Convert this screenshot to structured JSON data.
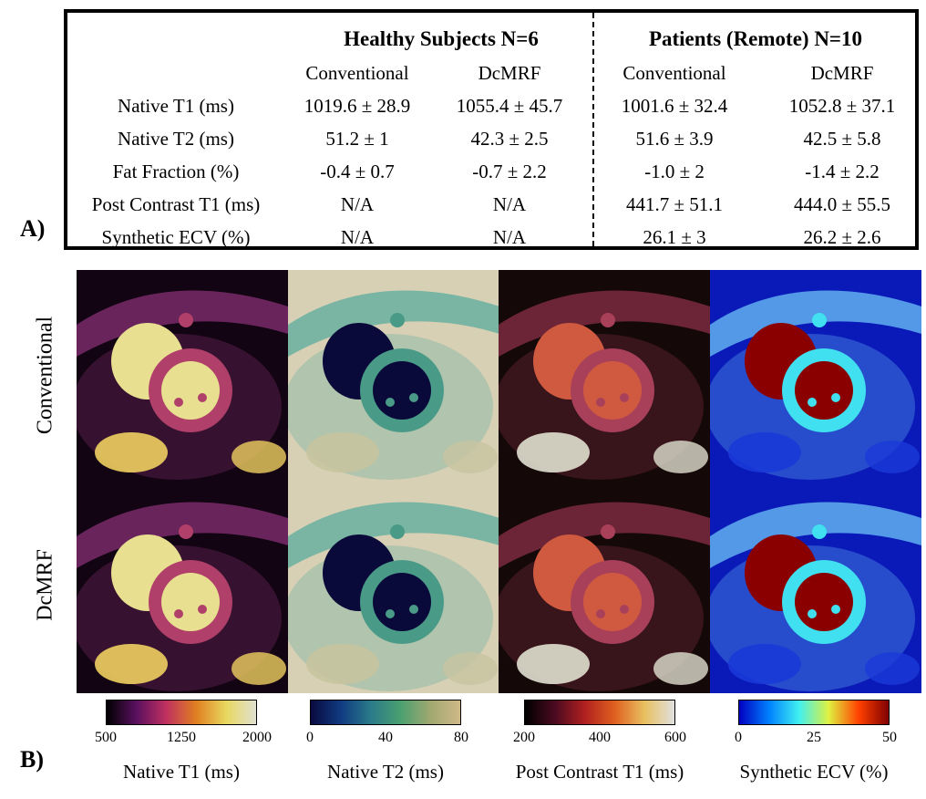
{
  "panel_a_label": "A)",
  "panel_b_label": "B)",
  "table": {
    "groups": [
      "Healthy Subjects N=6",
      "Patients (Remote) N=10"
    ],
    "subheaders": [
      "Conventional",
      "DcMRF",
      "Conventional",
      "DcMRF"
    ],
    "rows": [
      {
        "label": "Native T1 (ms)",
        "values": [
          "1019.6 ± 28.9",
          "1055.4 ± 45.7",
          "1001.6 ± 32.4",
          "1052.8 ± 37.1"
        ]
      },
      {
        "label": "Native T2 (ms)",
        "values": [
          "51.2 ± 1",
          "42.3 ± 2.5",
          "51.6 ± 3.9",
          "42.5 ± 5.8"
        ]
      },
      {
        "label": "Fat Fraction (%)",
        "values": [
          "-0.4 ± 0.7",
          "-0.7 ± 2.2",
          "-1.0 ± 2",
          "-1.4 ± 2.2"
        ]
      },
      {
        "label": "Post Contrast T1 (ms)",
        "values": [
          "N/A",
          "N/A",
          "441.7 ± 51.1",
          "444.0 ± 55.5"
        ]
      },
      {
        "label": "Synthetic ECV (%)",
        "values": [
          "N/A",
          "N/A",
          "26.1 ± 3",
          "26.2 ± 2.6"
        ]
      }
    ]
  },
  "row_titles": [
    "Conventional",
    "DcMRF"
  ],
  "maps": [
    {
      "name": "native-t1",
      "bg": "#120412",
      "muscle": "#b0406a",
      "blood": "#e8e090",
      "fat": "#f0d060",
      "chest": "#7a2a6a"
    },
    {
      "name": "native-t2",
      "bg": "#d8d0b4",
      "muscle": "#4a9a88",
      "blood": "#0a0a3a",
      "fat": "#c8c4a0",
      "chest": "#6ab0a0"
    },
    {
      "name": "post-contrast-t1",
      "bg": "#140808",
      "muscle": "#a8405a",
      "blood": "#d05a40",
      "fat": "#e0e0d0",
      "chest": "#7a2a40"
    },
    {
      "name": "synthetic-ecv",
      "bg": "#0a1ab8",
      "muscle": "#40e0f0",
      "blood": "#8a0000",
      "fat": "#1a3ad8",
      "chest": "#60b0f0"
    }
  ],
  "colorbars": [
    {
      "label": "Native T1 (ms)",
      "ticks": [
        "500",
        "1250",
        "2000"
      ],
      "stops": [
        "#000000",
        "#5a1060",
        "#c03060",
        "#e08020",
        "#e8d860",
        "#e0e0d0"
      ]
    },
    {
      "label": "Native T2 (ms)",
      "ticks": [
        "0",
        "40",
        "80"
      ],
      "stops": [
        "#0a0a40",
        "#103a80",
        "#2a7a8a",
        "#4aa070",
        "#a0a870",
        "#d0b888"
      ]
    },
    {
      "label": "Post Contrast T1 (ms)",
      "ticks": [
        "200",
        "400",
        "600"
      ],
      "stops": [
        "#000000",
        "#4a0a20",
        "#b02020",
        "#e06020",
        "#e8c060",
        "#e0e0e0"
      ]
    },
    {
      "label": "Synthetic ECV (%)",
      "ticks": [
        "0",
        "25",
        "50"
      ],
      "stops": [
        "#0000c0",
        "#0080ff",
        "#40f0f0",
        "#e0f040",
        "#ff4000",
        "#800000"
      ]
    }
  ]
}
